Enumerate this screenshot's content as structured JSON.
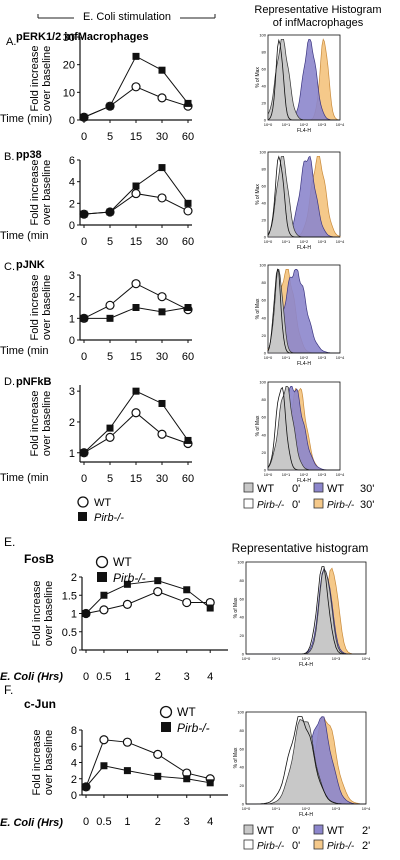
{
  "header": {
    "stimulation": "E. Coli stimulation",
    "histogram_title_1": "Representative Histogram",
    "histogram_title_2": "of infMacrophages"
  },
  "panels_top": [
    {
      "letter": "A.",
      "title": "pERK1/2 infMacrophages",
      "ylabel_1": "Fold increase",
      "ylabel_2": "over baseline",
      "yticks": [
        "0",
        "10",
        "20",
        "30"
      ],
      "xlabel": "Time (min)"
    },
    {
      "letter": "B.",
      "title": "pp38",
      "ylabel_1": "Fold increase",
      "ylabel_2": "over baseline",
      "yticks": [
        "0",
        "2",
        "4",
        "6"
      ],
      "xlabel": "Time (min"
    },
    {
      "letter": "C.",
      "title": "pJNK",
      "ylabel_1": "Fold increase",
      "ylabel_2": "over baseline",
      "yticks": [
        "0",
        "1",
        "2",
        "3"
      ],
      "xlabel": "Time (min"
    },
    {
      "letter": "D.",
      "title": "pNFkB",
      "ylabel_1": "Fold increase",
      "ylabel_2": "over baseline",
      "yticks": [
        "1",
        "2",
        "3"
      ],
      "xlabel": "Time (min"
    }
  ],
  "legend_top": {
    "wt": "WT",
    "ko": "Pirb-/-"
  },
  "hist_legend_top": {
    "wt0": "WT",
    "wt0_t": "0'",
    "wt30": "WT",
    "wt30_t": "30'",
    "ko0": "Pirb-/-",
    "ko0_t": "0'",
    "ko30": "Pirb-/-",
    "ko30_t": "30'"
  },
  "panels_bottom": [
    {
      "letter": "E.",
      "title": "FosB",
      "ylabel_1": "Fold increase",
      "ylabel_2": "over baseline",
      "yticks": [
        "0",
        "0.5",
        "1",
        "1.5",
        "2"
      ],
      "xlabel": "E. Coli (Hrs)",
      "legend_wt": "WT",
      "legend_ko": "Pirb-/-",
      "histogram_title": "Representative histogram"
    },
    {
      "letter": "F.",
      "title": "c-Jun",
      "ylabel_1": "Fold increase",
      "ylabel_2": "over baseline",
      "yticks": [
        "0",
        "2",
        "4",
        "6",
        "8"
      ],
      "xlabel": "E. Coli (Hrs)",
      "legend_wt": "WT",
      "legend_ko": "Pirb-/-"
    }
  ],
  "hist_legend_bottom": {
    "wt0": "WT",
    "wt0_t": "0'",
    "wt2": "WT",
    "wt2_t": "2'",
    "ko0": "Pirb-/-",
    "ko0_t": "0'",
    "ko2": "Pirb-/-",
    "ko2_t": "2'"
  },
  "hist_axis": {
    "ylabel": "% of Max",
    "xlabel": "FL4-H",
    "xticks": [
      "10^0",
      "10^1",
      "10^2",
      "10^3",
      "10^4"
    ],
    "yticks": [
      "0",
      "20",
      "40",
      "60",
      "80",
      "100"
    ]
  },
  "colors": {
    "wt0": "#c8c8c8",
    "ko0": "#ffffff",
    "wt_late": "#8c86cc",
    "ko_late": "#f5c98a"
  },
  "chart_data": [
    {
      "type": "line",
      "title": "pERK1/2 infMacrophages",
      "x": [
        "0",
        "5",
        "15",
        "30",
        "60"
      ],
      "xlabel": "Time (min)",
      "ylabel": "Fold increase over baseline",
      "ylim": [
        0,
        30
      ],
      "series": [
        {
          "name": "WT",
          "values": [
            1,
            5,
            12,
            8,
            5
          ]
        },
        {
          "name": "Pirb-/-",
          "values": [
            1,
            5,
            23,
            18,
            6
          ]
        }
      ]
    },
    {
      "type": "line",
      "title": "pp38",
      "x": [
        "0",
        "5",
        "15",
        "30",
        "60"
      ],
      "xlabel": "Time (min",
      "ylabel": "Fold increase over baseline",
      "ylim": [
        0,
        6
      ],
      "series": [
        {
          "name": "WT",
          "values": [
            1,
            1.2,
            2.9,
            2.5,
            1.3
          ]
        },
        {
          "name": "Pirb-/-",
          "values": [
            1,
            1.2,
            3.6,
            5.3,
            2.0
          ]
        }
      ]
    },
    {
      "type": "line",
      "title": "pJNK",
      "x": [
        "0",
        "5",
        "15",
        "30",
        "60"
      ],
      "xlabel": "Time (min",
      "ylabel": "Fold increase over baseline",
      "ylim": [
        0,
        3
      ],
      "series": [
        {
          "name": "WT",
          "values": [
            1,
            1.6,
            2.6,
            2.0,
            1.4
          ]
        },
        {
          "name": "Pirb-/-",
          "values": [
            1,
            1.0,
            1.5,
            1.3,
            1.5
          ]
        }
      ]
    },
    {
      "type": "line",
      "title": "pNFkB",
      "x": [
        "0",
        "5",
        "15",
        "30",
        "60"
      ],
      "xlabel": "Time (min",
      "ylabel": "Fold increase over baseline",
      "ylim": [
        0.7,
        3.2
      ],
      "series": [
        {
          "name": "WT",
          "values": [
            1,
            1.5,
            2.3,
            1.6,
            1.3
          ]
        },
        {
          "name": "Pirb-/-",
          "values": [
            1,
            1.8,
            3.0,
            2.6,
            1.4
          ]
        }
      ]
    },
    {
      "type": "line",
      "title": "FosB",
      "x": [
        "0",
        "0.5",
        "1",
        "2",
        "3",
        "4"
      ],
      "xlabel": "E. Coli (Hrs)",
      "ylabel": "Fold increase over baseline",
      "ylim": [
        0,
        2
      ],
      "series": [
        {
          "name": "WT",
          "values": [
            1.0,
            1.1,
            1.25,
            1.6,
            1.3,
            1.3
          ]
        },
        {
          "name": "Pirb-/-",
          "values": [
            1.0,
            1.5,
            1.8,
            1.9,
            1.65,
            1.15
          ]
        }
      ]
    },
    {
      "type": "line",
      "title": "c-Jun",
      "x": [
        "0",
        "0.5",
        "1",
        "2",
        "3",
        "4"
      ],
      "xlabel": "E. Coli (Hrs)",
      "ylabel": "Fold increase over baseline",
      "ylim": [
        0,
        8
      ],
      "series": [
        {
          "name": "WT",
          "values": [
            1.0,
            6.8,
            6.5,
            5.0,
            2.7,
            2.0
          ]
        },
        {
          "name": "Pirb-/-",
          "values": [
            1.0,
            3.6,
            3.0,
            2.3,
            2.0,
            1.5
          ]
        }
      ]
    }
  ]
}
